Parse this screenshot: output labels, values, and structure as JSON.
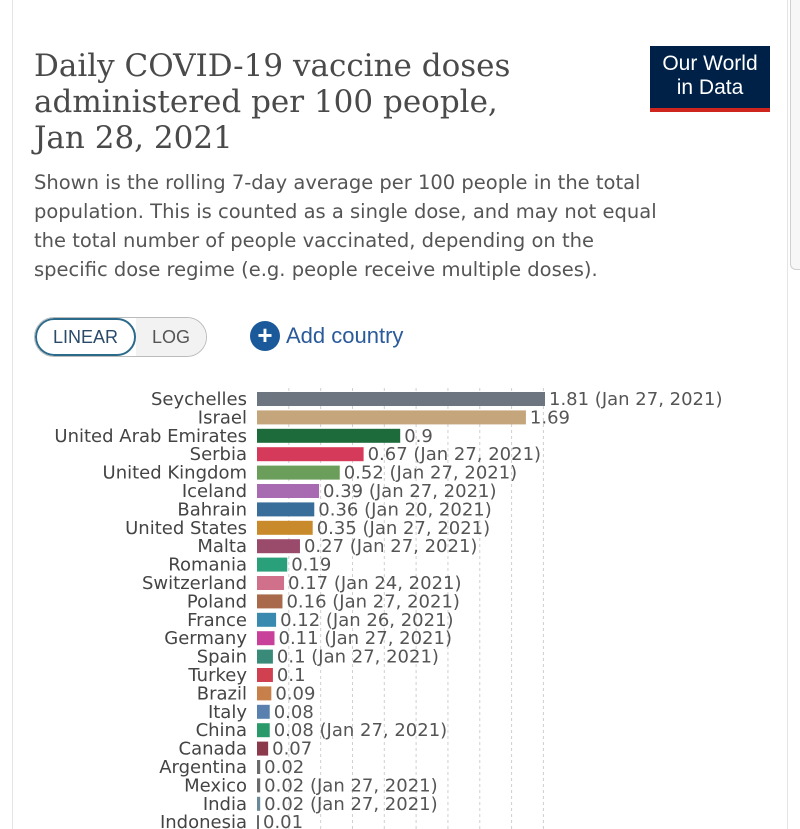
{
  "header": {
    "title_lines": [
      "Daily COVID-19 vaccine doses",
      "administered per 100 people,",
      "Jan 28, 2021"
    ],
    "subtitle_lines": [
      "Shown is the rolling 7-day average per 100 people in the total",
      "population. This is counted as a single dose, and may not equal",
      "the total number of people vaccinated, depending on the",
      "specific dose regime (e.g. people receive multiple doses)."
    ]
  },
  "logo": {
    "line1": "Our World",
    "line2": "in Data",
    "bg_color": "#002147",
    "accent_color": "#ce261e"
  },
  "controls": {
    "scale_options": [
      "LINEAR",
      "LOG"
    ],
    "selected_scale": "LINEAR",
    "add_country_label": "Add country",
    "add_icon": "plus-circle-icon"
  },
  "chart_data": {
    "type": "bar",
    "orientation": "horizontal",
    "grid": true,
    "categories": [
      "Seychelles",
      "Israel",
      "United Arab Emirates",
      "Serbia",
      "United Kingdom",
      "Iceland",
      "Bahrain",
      "United States",
      "Malta",
      "Romania",
      "Switzerland",
      "Poland",
      "France",
      "Germany",
      "Spain",
      "Turkey",
      "Brazil",
      "Italy",
      "China",
      "Canada",
      "Argentina",
      "Mexico",
      "India",
      "Indonesia"
    ],
    "values": [
      1.81,
      1.69,
      0.9,
      0.67,
      0.52,
      0.39,
      0.36,
      0.35,
      0.27,
      0.19,
      0.17,
      0.16,
      0.12,
      0.11,
      0.1,
      0.1,
      0.09,
      0.08,
      0.08,
      0.07,
      0.02,
      0.02,
      0.02,
      0.01
    ],
    "value_labels": [
      "1.81 (Jan 27, 2021)",
      "1.69",
      "0.9",
      "0.67 (Jan 27, 2021)",
      "0.52 (Jan 27, 2021)",
      "0.39 (Jan 27, 2021)",
      "0.36 (Jan 20, 2021)",
      "0.35 (Jan 27, 2021)",
      "0.27 (Jan 27, 2021)",
      "0.19",
      "0.17 (Jan 24, 2021)",
      "0.16 (Jan 27, 2021)",
      "0.12 (Jan 26, 2021)",
      "0.11 (Jan 27, 2021)",
      "0.1 (Jan 27, 2021)",
      "0.1",
      "0.09",
      "0.08",
      "0.08 (Jan 27, 2021)",
      "0.07",
      "0.02",
      "0.02 (Jan 27, 2021)",
      "0.02 (Jan 27, 2021)",
      "0.01"
    ],
    "colors": [
      "#6d7580",
      "#c4a57c",
      "#1d6a3a",
      "#d63a5a",
      "#6b9e5a",
      "#a86ab0",
      "#3a6e9a",
      "#c88a2a",
      "#9a4a6a",
      "#2aa07a",
      "#d0708a",
      "#a86a4a",
      "#3a8ab0",
      "#c8409a",
      "#3a8a7a",
      "#d04050",
      "#c8804a",
      "#5a80b0",
      "#2a9a6a",
      "#8a3a4a",
      "#6a6a6a",
      "#6a6a6a",
      "#6a8a9a",
      "#6a6a6a"
    ],
    "xlim": [
      0,
      1.81
    ]
  }
}
